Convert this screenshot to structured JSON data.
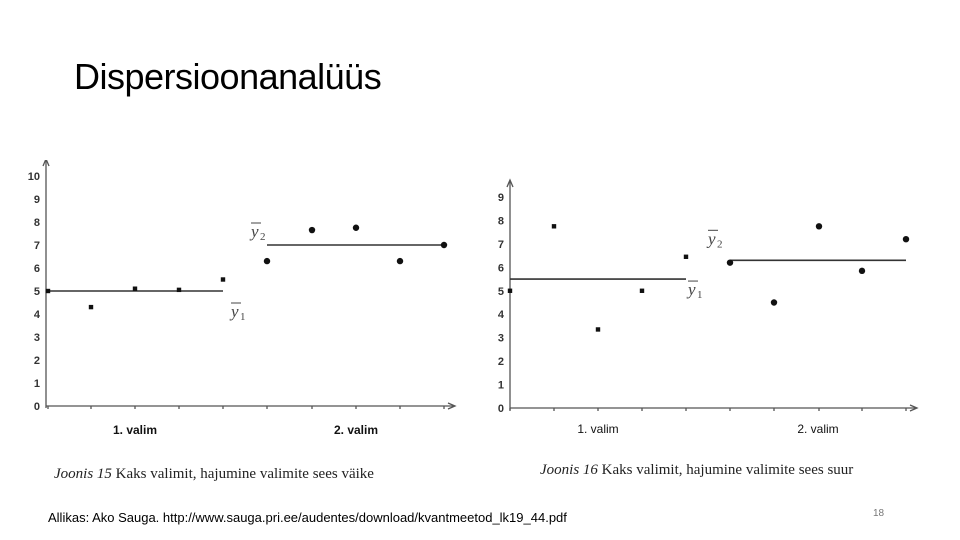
{
  "slide": {
    "title": "Dispersioonanalüüs",
    "source": "Allikas: Ako Sauga. http://www.sauga.pri.ee/audentes/download/kvantmeetod_lk19_44.pdf",
    "page_number": "18"
  },
  "chart_data": [
    {
      "type": "scatter",
      "caption_label": "Joonis 15",
      "caption_text": "Kaks valimit, hajumine valimite sees väike",
      "ylim": [
        0,
        10
      ],
      "yticks": [
        "0",
        "1",
        "2",
        "3",
        "4",
        "5",
        "6",
        "7",
        "8",
        "9",
        "10"
      ],
      "categories": [
        "1. valim",
        "2. valim"
      ],
      "category_bold": true,
      "mean_labels": [
        {
          "base": "y",
          "sub": "1"
        },
        {
          "base": "y",
          "sub": "2"
        }
      ],
      "series": [
        {
          "name": "1. valim",
          "x": [
            0,
            1,
            2,
            3,
            4
          ],
          "values": [
            5.0,
            4.3,
            5.1,
            5.05,
            5.5
          ]
        },
        {
          "name": "2. valim",
          "x": [
            5,
            6,
            7,
            8,
            9
          ],
          "values": [
            6.3,
            7.65,
            7.75,
            6.3,
            7.0
          ]
        }
      ],
      "means": [
        5.0,
        7.0
      ]
    },
    {
      "type": "scatter",
      "caption_label": "Joonis 16",
      "caption_text": "Kaks valimit, hajumine valimite sees suur",
      "ylim": [
        0,
        9
      ],
      "yticks": [
        "0",
        "1",
        "2",
        "3",
        "4",
        "5",
        "6",
        "7",
        "8",
        "9"
      ],
      "categories": [
        "1. valim",
        "2. valim"
      ],
      "category_bold": false,
      "mean_labels": [
        {
          "base": "y",
          "sub": "1"
        },
        {
          "base": "y",
          "sub": "2"
        }
      ],
      "series": [
        {
          "name": "1. valim",
          "x": [
            0,
            1,
            2,
            3,
            4
          ],
          "values": [
            5.0,
            7.75,
            3.35,
            5.0,
            6.45
          ]
        },
        {
          "name": "2. valim",
          "x": [
            5,
            6,
            7,
            8,
            9
          ],
          "values": [
            6.2,
            4.5,
            7.75,
            5.85,
            7.2
          ]
        }
      ],
      "means": [
        5.5,
        6.3
      ]
    }
  ]
}
